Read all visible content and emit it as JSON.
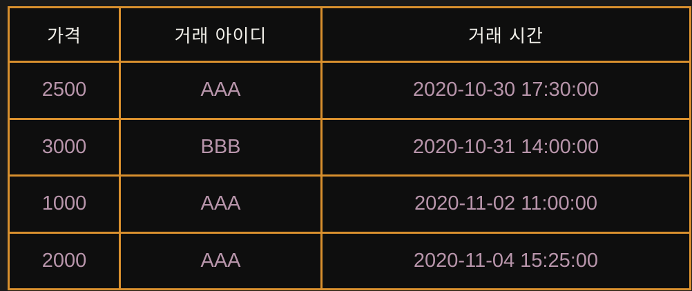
{
  "table": {
    "headers": [
      "가격",
      "거래 아이디",
      "거래 시간"
    ],
    "rows": [
      {
        "price": "2500",
        "trade_id": "AAA",
        "trade_time": "2020-10-30 17:30:00"
      },
      {
        "price": "3000",
        "trade_id": "BBB",
        "trade_time": "2020-10-31 14:00:00"
      },
      {
        "price": "1000",
        "trade_id": "AAA",
        "trade_time": "2020-11-02 11:00:00"
      },
      {
        "price": "2000",
        "trade_id": "AAA",
        "trade_time": "2020-11-04 15:25:00"
      }
    ]
  },
  "colors": {
    "border": "#d9902e",
    "header_text": "#f2f0ea",
    "cell_text": "#b895ab",
    "cell_background": "#0e0e0e"
  }
}
